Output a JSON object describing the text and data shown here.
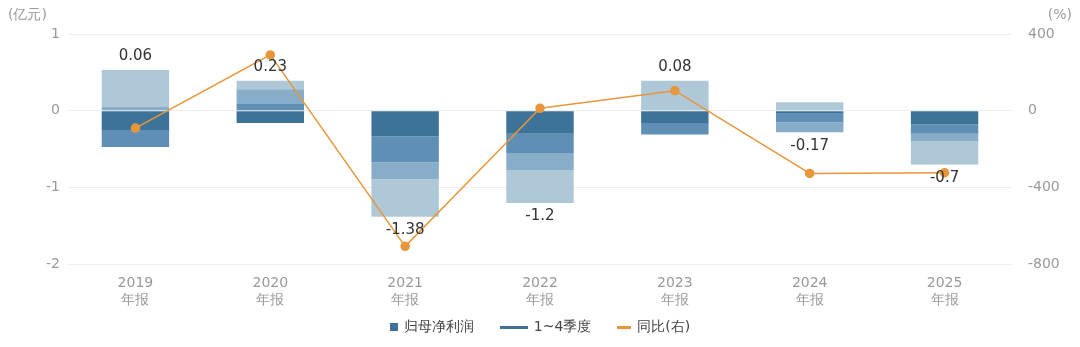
{
  "chart_data": {
    "type": "bar",
    "stacked": true,
    "ylabel": "(亿元)",
    "y2label": "(%)",
    "categories": [
      "2019\n年报",
      "2020\n年报",
      "2021\n年报",
      "2022\n年报",
      "2023\n年报",
      "2024\n年报",
      "2025\n年报"
    ],
    "series": [
      {
        "color": "#3d7299",
        "values": [
          -0.25,
          -0.16,
          -0.33,
          -0.3,
          -0.16,
          -0.03,
          -0.18
        ]
      },
      {
        "color": "#5f8fb4",
        "values": [
          -0.22,
          0.09,
          -0.34,
          -0.25,
          -0.15,
          -0.12,
          -0.12
        ]
      },
      {
        "color": "#88adc8",
        "values": [
          0.05,
          0.19,
          -0.22,
          -0.22,
          0,
          -0.13,
          -0.1
        ]
      },
      {
        "color": "#afc8d8",
        "values": [
          0.48,
          0.11,
          -0.49,
          -0.43,
          0.39,
          0.11,
          -0.3
        ]
      },
      {
        "name": "同比(右)",
        "type": "line",
        "axis": "y2",
        "color": "#e8963a",
        "marker": "circle",
        "values": [
          -90,
          291,
          -706,
          13,
          105,
          -326,
          -323
        ]
      }
    ],
    "totals": [
      "0.06",
      "0.23",
      "-1.38",
      "-1.2",
      "0.08",
      "-0.17",
      "-0.7"
    ],
    "annotations": [
      "归母净利润",
      "1~4季度"
    ],
    "ylim": [
      -2,
      1
    ],
    "yticks": [
      -2,
      -1,
      0,
      1
    ],
    "y2lim": [
      -800,
      400
    ],
    "y2ticks": [
      -800,
      -400,
      0,
      400
    ],
    "grid": "y",
    "legend": "bottom"
  }
}
